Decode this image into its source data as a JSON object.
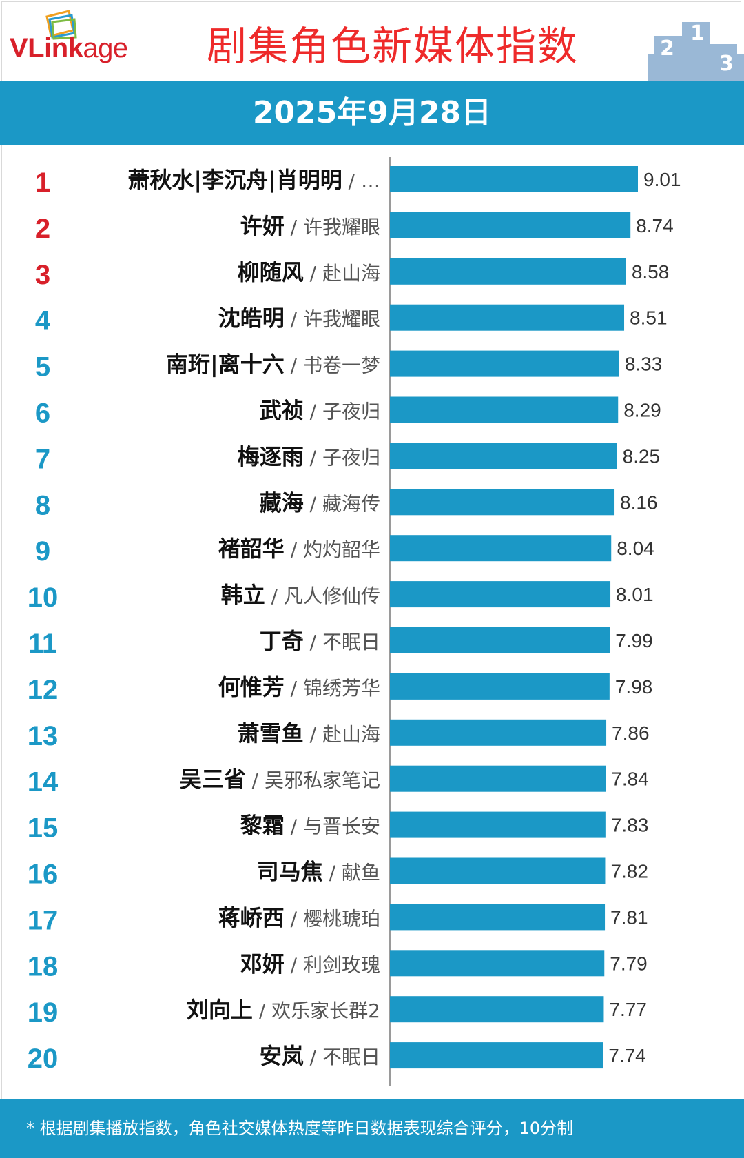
{
  "header": {
    "logo_main": "VLink",
    "logo_suffix": "age",
    "title": "剧集角色新媒体指数"
  },
  "date": "2025年9月28日",
  "footer": {
    "note": "* 根据剧集播放指数，角色社交媒体热度等昨日数据表现综合评分，10分制"
  },
  "colors": {
    "bar": "#1b98c6",
    "rank_top": "#d8202a",
    "rank_other": "#1b98c6",
    "band": "#1b98c6"
  },
  "chart_data": {
    "type": "bar",
    "orientation": "horizontal",
    "xlim": [
      0,
      9.01
    ],
    "rows": [
      {
        "rank": "1",
        "name": "萧秋水|李沉舟|肖明明",
        "show": "…",
        "value": 9.01
      },
      {
        "rank": "2",
        "name": "许妍",
        "show": "许我耀眼",
        "value": 8.74
      },
      {
        "rank": "3",
        "name": "柳随风",
        "show": "赴山海",
        "value": 8.58
      },
      {
        "rank": "4",
        "name": "沈皓明",
        "show": "许我耀眼",
        "value": 8.51
      },
      {
        "rank": "5",
        "name": "南珩|离十六",
        "show": "书卷一梦",
        "value": 8.33
      },
      {
        "rank": "6",
        "name": "武祯",
        "show": "子夜归",
        "value": 8.29
      },
      {
        "rank": "7",
        "name": "梅逐雨",
        "show": "子夜归",
        "value": 8.25
      },
      {
        "rank": "8",
        "name": "藏海",
        "show": "藏海传",
        "value": 8.16
      },
      {
        "rank": "9",
        "name": "褚韶华",
        "show": "灼灼韶华",
        "value": 8.04
      },
      {
        "rank": "10",
        "name": "韩立",
        "show": "凡人修仙传",
        "value": 8.01
      },
      {
        "rank": "11",
        "name": "丁奇",
        "show": "不眠日",
        "value": 7.99
      },
      {
        "rank": "12",
        "name": "何惟芳",
        "show": "锦绣芳华",
        "value": 7.98
      },
      {
        "rank": "13",
        "name": "萧雪鱼",
        "show": "赴山海",
        "value": 7.86
      },
      {
        "rank": "14",
        "name": "吴三省",
        "show": "吴邪私家笔记",
        "value": 7.84
      },
      {
        "rank": "15",
        "name": "黎霜",
        "show": "与晋长安",
        "value": 7.83
      },
      {
        "rank": "16",
        "name": "司马焦",
        "show": "献鱼",
        "value": 7.82
      },
      {
        "rank": "17",
        "name": "蒋峤西",
        "show": "樱桃琥珀",
        "value": 7.81
      },
      {
        "rank": "18",
        "name": "邓妍",
        "show": "利剑玫瑰",
        "value": 7.79
      },
      {
        "rank": "19",
        "name": "刘向上",
        "show": "欢乐家长群2",
        "value": 7.77
      },
      {
        "rank": "20",
        "name": "安岚",
        "show": "不眠日",
        "value": 7.74
      }
    ]
  }
}
